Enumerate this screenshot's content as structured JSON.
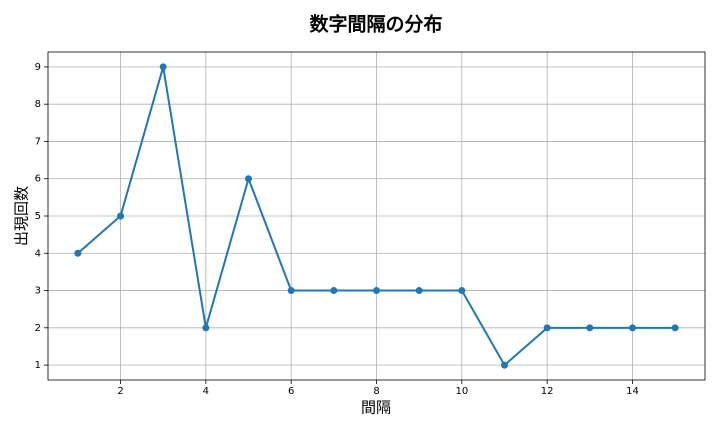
{
  "chart_data": {
    "type": "line",
    "title": "数字間隔の分布",
    "x_label": "間隔",
    "y_label": "出現回数",
    "x": [
      1,
      2,
      3,
      4,
      5,
      6,
      7,
      8,
      9,
      10,
      11,
      12,
      13,
      14,
      15
    ],
    "series": [
      {
        "color": "#1f77b4",
        "values": [
          4,
          5,
          9,
          2,
          6,
          3,
          3,
          3,
          3,
          3,
          1,
          2,
          2,
          2,
          2
        ]
      }
    ],
    "xlim": [
      0.3,
      15.7
    ],
    "xticks": [
      2,
      4,
      6,
      8,
      10,
      12,
      14
    ],
    "ylim": [
      0.6,
      9.4
    ],
    "yticks": [
      1,
      2,
      3,
      4,
      5,
      6,
      7,
      8,
      9
    ],
    "grid": true
  }
}
